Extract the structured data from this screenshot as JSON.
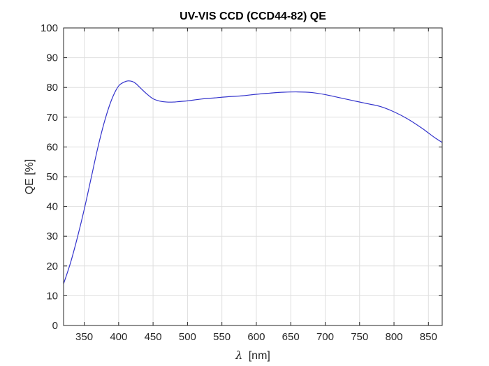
{
  "chart_data": {
    "type": "line",
    "title": "UV-VIS CCD (CCD44-82) QE",
    "xlabel_symbol": "λ",
    "xlabel_unit": "[nm]",
    "ylabel": "QE [%]",
    "xlim": [
      320,
      870
    ],
    "ylim": [
      0,
      100
    ],
    "xticks": [
      350,
      400,
      450,
      500,
      550,
      600,
      650,
      700,
      750,
      800,
      850
    ],
    "yticks": [
      0,
      10,
      20,
      30,
      40,
      50,
      60,
      70,
      80,
      90,
      100
    ],
    "grid": true,
    "series": [
      {
        "color": "#3333cc",
        "x": [
          320,
          330,
          340,
          350,
          360,
          370,
          380,
          390,
          400,
          410,
          415,
          420,
          425,
          430,
          440,
          450,
          460,
          470,
          480,
          490,
          500,
          520,
          540,
          560,
          580,
          600,
          620,
          640,
          660,
          680,
          700,
          720,
          740,
          760,
          780,
          800,
          820,
          840,
          850,
          860,
          870
        ],
        "y": [
          14,
          21,
          29.5,
          39,
          49.5,
          60,
          69,
          76,
          80.5,
          82,
          82.2,
          82,
          81.3,
          80.2,
          78,
          76.2,
          75.4,
          75.1,
          75.1,
          75.3,
          75.5,
          76.1,
          76.5,
          76.9,
          77.2,
          77.7,
          78.1,
          78.4,
          78.5,
          78.3,
          77.6,
          76.6,
          75.6,
          74.6,
          73.6,
          71.8,
          69.4,
          66.4,
          64.7,
          63,
          61.5
        ]
      }
    ]
  }
}
